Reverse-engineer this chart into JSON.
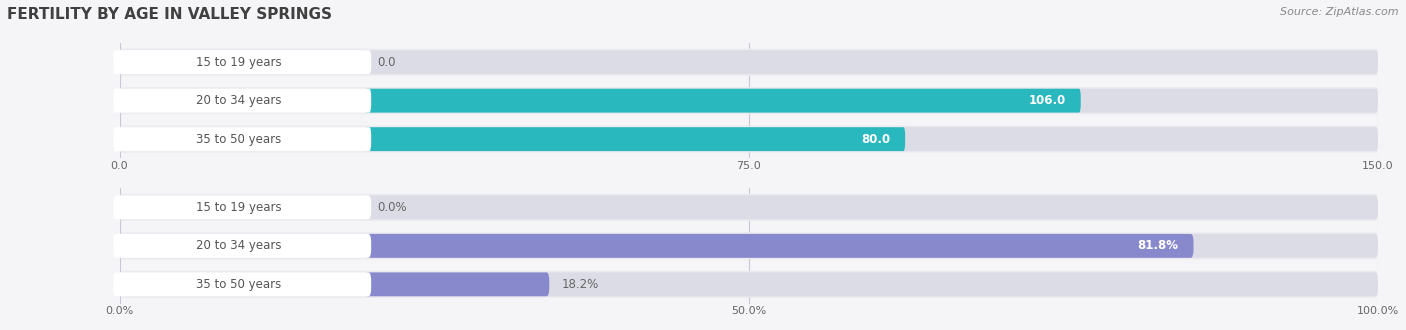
{
  "title": "FERTILITY BY AGE IN VALLEY SPRINGS",
  "source": "Source: ZipAtlas.com",
  "top_chart": {
    "categories": [
      "15 to 19 years",
      "20 to 34 years",
      "35 to 50 years"
    ],
    "values": [
      0.0,
      106.0,
      80.0
    ],
    "bar_color_strong": "#28b8be",
    "bar_color_light": "#9dd8db",
    "xlim": [
      0,
      150
    ],
    "xticks": [
      0.0,
      75.0,
      150.0
    ],
    "xtick_labels": [
      "0.0",
      "75.0",
      "150.0"
    ]
  },
  "bottom_chart": {
    "categories": [
      "15 to 19 years",
      "20 to 34 years",
      "35 to 50 years"
    ],
    "values": [
      0.0,
      81.8,
      18.2
    ],
    "bar_color_strong": "#8888cc",
    "bar_color_light": "#b8b8e0",
    "xlim": [
      0,
      100
    ],
    "xticks": [
      0.0,
      50.0,
      100.0
    ],
    "xtick_labels": [
      "0.0%",
      "50.0%",
      "100.0%"
    ]
  },
  "label_values_top": [
    "0.0",
    "106.0",
    "80.0"
  ],
  "label_values_bottom": [
    "0.0%",
    "81.8%",
    "18.2%"
  ],
  "bg_color": "#f5f5f8",
  "bar_row_bg": "#eaeaef",
  "bar_track_bg": "#dcdce6",
  "label_pill_bg": "#ffffff",
  "label_inside_color": "#ffffff",
  "label_outside_color": "#666666",
  "category_label_color": "#555555",
  "title_color": "#404040",
  "source_color": "#888888",
  "title_fontsize": 11,
  "source_fontsize": 8,
  "cat_fontsize": 8.5,
  "val_fontsize": 8.5,
  "tick_fontsize": 8
}
